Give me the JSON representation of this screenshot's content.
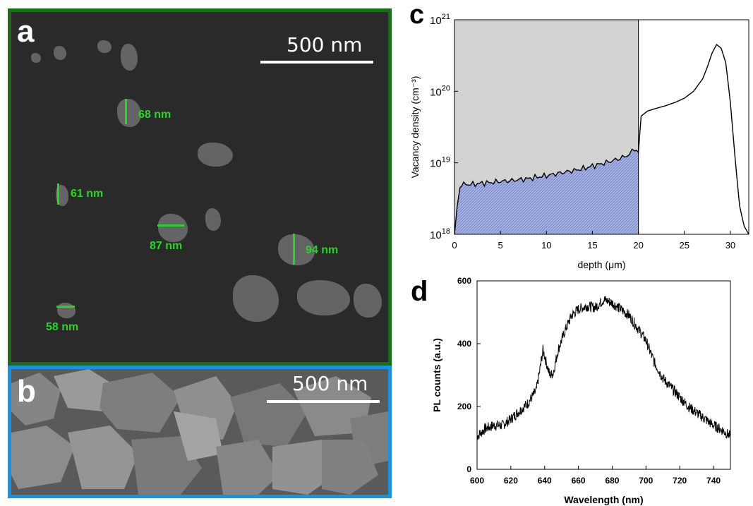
{
  "panel_a": {
    "letter": "a",
    "scale_label": "500 nm",
    "measurements": [
      "68 nm",
      "61 nm",
      "87 nm",
      "94 nm",
      "58 nm"
    ]
  },
  "panel_b": {
    "letter": "b",
    "scale_label": "500 nm"
  },
  "panel_c": {
    "letter": "c"
  },
  "panel_d": {
    "letter": "d"
  },
  "chart_data": [
    {
      "panel": "c",
      "type": "area",
      "xlabel": "depth (μm)",
      "ylabel": "Vacancy density (cm⁻³)",
      "xlim": [
        0,
        32
      ],
      "ylim": [
        1e+18,
        1e+21
      ],
      "yscale": "log",
      "x_ticks": [
        0,
        5,
        10,
        15,
        20,
        25,
        30
      ],
      "y_ticks": [
        "10^18",
        "10^19",
        "10^20",
        "10^21"
      ],
      "shaded_region": {
        "x_from": 0,
        "x_to": 20,
        "color": "#d3d3d3"
      },
      "filled_region_color": "#8f9fd6",
      "x": [
        0,
        0.3,
        0.6,
        1,
        2,
        3,
        4,
        5,
        6,
        7,
        8,
        9,
        10,
        11,
        12,
        13,
        14,
        15,
        16,
        17,
        18,
        19,
        19.6,
        20,
        20.3,
        21,
        22,
        23,
        24,
        25,
        26,
        27,
        27.5,
        28,
        28.5,
        29,
        29.5,
        30,
        30.5,
        31,
        31.5,
        32
      ],
      "values": [
        1e+18,
        2.5e+18,
        4.5e+18,
        5e+18,
        5e+18,
        5.2e+18,
        5.3e+18,
        5.5e+18,
        5.6e+18,
        5.8e+18,
        6e+18,
        6.3e+18,
        6.6e+18,
        7e+18,
        7.4e+18,
        7.8e+18,
        8.3e+18,
        9e+18,
        9.7e+18,
        1.05e+19,
        1.15e+19,
        1.3e+19,
        1.6e+19,
        1.4e+19,
        4.5e+19,
        5.3e+19,
        5.8e+19,
        6.3e+19,
        7e+19,
        8e+19,
        1e+20,
        1.5e+20,
        2.2e+20,
        3.4e+20,
        4.5e+20,
        4e+20,
        2.5e+20,
        7e+19,
        1.2e+19,
        2.5e+18,
        1.3e+18,
        1e+18
      ]
    },
    {
      "panel": "d",
      "type": "line",
      "xlabel": "Wavelength (nm)",
      "ylabel": "PL counts (a.u.)",
      "xlim": [
        600,
        750
      ],
      "ylim": [
        0,
        600
      ],
      "x_ticks": [
        600,
        620,
        640,
        660,
        680,
        700,
        720,
        740
      ],
      "y_ticks": [
        0,
        200,
        400,
        600
      ],
      "x": [
        600,
        605,
        610,
        615,
        620,
        625,
        630,
        635,
        637,
        639,
        641,
        643,
        645,
        648,
        652,
        656,
        660,
        665,
        670,
        675,
        680,
        685,
        690,
        695,
        700,
        705,
        710,
        715,
        720,
        725,
        730,
        735,
        740,
        745,
        750
      ],
      "values": [
        105,
        130,
        140,
        140,
        160,
        185,
        210,
        250,
        310,
        380,
        340,
        300,
        305,
        380,
        440,
        490,
        510,
        520,
        515,
        540,
        530,
        510,
        490,
        450,
        410,
        340,
        290,
        260,
        230,
        200,
        180,
        160,
        140,
        125,
        105
      ]
    }
  ]
}
